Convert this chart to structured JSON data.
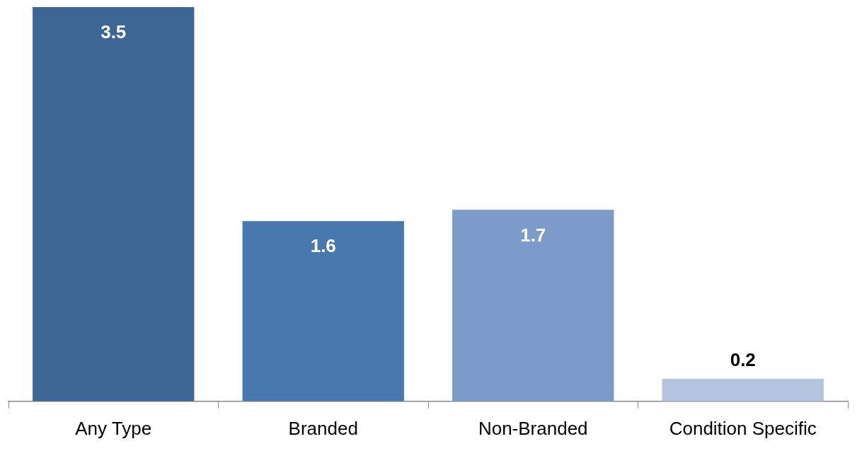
{
  "chart_data": {
    "type": "bar",
    "categories": [
      "Any Type",
      "Branded",
      "Non-Branded",
      "Condition Specific"
    ],
    "values": [
      3.5,
      1.6,
      1.7,
      0.2
    ],
    "colors": [
      "#3d6695",
      "#4878ae",
      "#7d9bc8",
      "#b4c3de"
    ],
    "data_labels": true,
    "grid": false,
    "legend": false
  }
}
